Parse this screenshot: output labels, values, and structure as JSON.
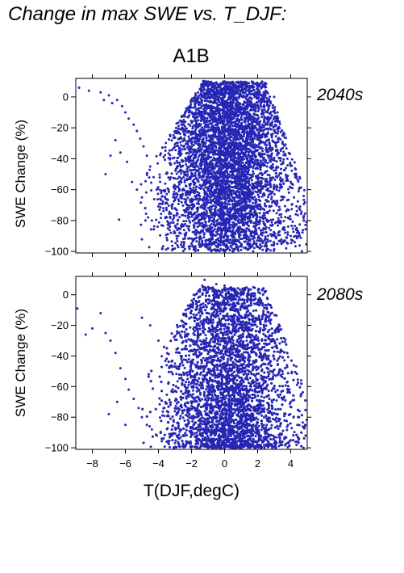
{
  "figure": {
    "title": "Change in max SWE vs. T_DJF:",
    "scenario": "A1B",
    "xlabel": "T(DJF,degC)",
    "point_color": "#2626b4"
  },
  "chart_data": [
    {
      "type": "scatter",
      "panel": "2040s",
      "title": "",
      "xlabel": "T(DJF,degC)",
      "ylabel": "SWE Change (%)",
      "xlim": [
        -9,
        5
      ],
      "ylim": [
        -101,
        12
      ],
      "xticks": [
        -8,
        -6,
        -4,
        -2,
        0,
        2,
        4
      ],
      "yticks": [
        0,
        -20,
        -40,
        -60,
        -80,
        -100
      ],
      "grid": false,
      "color": "#2626b4",
      "points": [
        [
          -8.8,
          6
        ],
        [
          -8.2,
          4
        ],
        [
          -7.5,
          3
        ],
        [
          -7.3,
          -2
        ],
        [
          -7.0,
          1
        ],
        [
          -6.8,
          -4
        ],
        [
          -6.5,
          -2
        ],
        [
          -6.2,
          -6
        ],
        [
          -6.0,
          -10
        ],
        [
          -5.8,
          -14
        ],
        [
          -5.5,
          -18
        ],
        [
          -5.3,
          -22
        ],
        [
          -5.1,
          -27
        ],
        [
          -4.9,
          -32
        ],
        [
          -4.7,
          -38
        ],
        [
          -4.5,
          -45
        ],
        [
          -4.3,
          -52
        ],
        [
          -4.1,
          -60
        ],
        [
          -3.9,
          -66
        ],
        [
          -3.7,
          -72
        ],
        [
          -3.5,
          -78
        ],
        [
          -3.3,
          -84
        ],
        [
          -3.0,
          -88
        ],
        [
          -7.2,
          -50
        ],
        [
          -6.9,
          -38
        ],
        [
          -6.6,
          -28
        ],
        [
          -6.3,
          -36
        ],
        [
          -5.9,
          -42
        ],
        [
          -5.6,
          -55
        ],
        [
          -5.3,
          -60
        ],
        [
          -5.0,
          -65
        ],
        [
          -4.8,
          -72
        ],
        [
          -4.4,
          -80
        ],
        [
          -2.8,
          -90
        ],
        [
          -2.5,
          -92
        ],
        [
          -2.0,
          -95
        ],
        [
          -1.5,
          -97
        ],
        [
          -1.0,
          -98
        ],
        [
          -0.5,
          -99
        ],
        [
          0.0,
          -100
        ],
        [
          0.5,
          -100
        ],
        [
          1.0,
          -99
        ],
        [
          1.5,
          -98
        ],
        [
          2.0,
          -97
        ],
        [
          2.5,
          -96
        ],
        [
          3.0,
          -95
        ],
        [
          3.5,
          -94
        ],
        [
          4.0,
          -90
        ],
        [
          4.5,
          -88
        ],
        [
          4.8,
          -80
        ],
        [
          -1.5,
          5
        ],
        [
          -1.0,
          8
        ],
        [
          -0.5,
          9
        ],
        [
          0.0,
          10
        ],
        [
          0.5,
          9
        ],
        [
          1.0,
          8
        ],
        [
          1.5,
          7
        ],
        [
          2.0,
          5
        ],
        [
          2.5,
          3
        ],
        [
          3.0,
          0
        ],
        [
          3.2,
          -10
        ],
        [
          3.5,
          -25
        ],
        [
          3.8,
          -40
        ],
        [
          4.0,
          -55
        ],
        [
          4.2,
          -65
        ],
        [
          4.5,
          -72
        ],
        [
          4.8,
          -77
        ]
      ]
    },
    {
      "type": "scatter",
      "panel": "2080s",
      "title": "",
      "xlabel": "T(DJF,degC)",
      "ylabel": "SWE Change (%)",
      "xlim": [
        -9,
        5
      ],
      "ylim": [
        -101,
        12
      ],
      "xticks": [
        -8,
        -6,
        -4,
        -2,
        0,
        2,
        4
      ],
      "yticks": [
        0,
        -20,
        -40,
        -60,
        -80,
        -100
      ],
      "grid": false,
      "color": "#2626b4",
      "points": [
        [
          -8.9,
          -9
        ],
        [
          -8.4,
          -26
        ],
        [
          -8.0,
          -22
        ],
        [
          -7.5,
          -12
        ],
        [
          -7.2,
          -25
        ],
        [
          -6.9,
          -30
        ],
        [
          -6.6,
          -38
        ],
        [
          -6.3,
          -48
        ],
        [
          -6.0,
          -55
        ],
        [
          -5.8,
          -62
        ],
        [
          -5.5,
          -68
        ],
        [
          -5.2,
          -74
        ],
        [
          -5.0,
          -80
        ],
        [
          -4.7,
          -85
        ],
        [
          -4.4,
          -88
        ],
        [
          -4.1,
          -92
        ],
        [
          -3.8,
          -94
        ],
        [
          -3.5,
          -96
        ],
        [
          -3.0,
          -97
        ],
        [
          -2.5,
          -98
        ],
        [
          -2.0,
          -99
        ],
        [
          -1.5,
          -100
        ],
        [
          -1.0,
          -100
        ],
        [
          -0.5,
          -100
        ],
        [
          0.0,
          -100
        ],
        [
          0.5,
          -100
        ],
        [
          1.0,
          -100
        ],
        [
          1.5,
          -99
        ],
        [
          2.0,
          -99
        ],
        [
          2.5,
          -98
        ],
        [
          3.0,
          -97
        ],
        [
          3.5,
          -96
        ],
        [
          4.0,
          -95
        ],
        [
          4.5,
          -94
        ],
        [
          4.9,
          -92
        ],
        [
          -1.5,
          2
        ],
        [
          -1.0,
          5
        ],
        [
          -0.5,
          7
        ],
        [
          0.0,
          6
        ],
        [
          0.5,
          4
        ],
        [
          1.0,
          2
        ],
        [
          1.5,
          0
        ],
        [
          2.0,
          -5
        ],
        [
          2.5,
          -15
        ],
        [
          3.0,
          -30
        ],
        [
          3.5,
          -50
        ],
        [
          4.0,
          -70
        ],
        [
          4.5,
          -80
        ],
        [
          4.9,
          -85
        ],
        [
          -5.0,
          -15
        ],
        [
          -4.5,
          -20
        ],
        [
          -4.0,
          -30
        ],
        [
          -3.5,
          -35
        ],
        [
          -3.0,
          -45
        ],
        [
          -6.5,
          -70
        ],
        [
          -7.0,
          -78
        ],
        [
          -6.0,
          -85
        ]
      ]
    }
  ]
}
